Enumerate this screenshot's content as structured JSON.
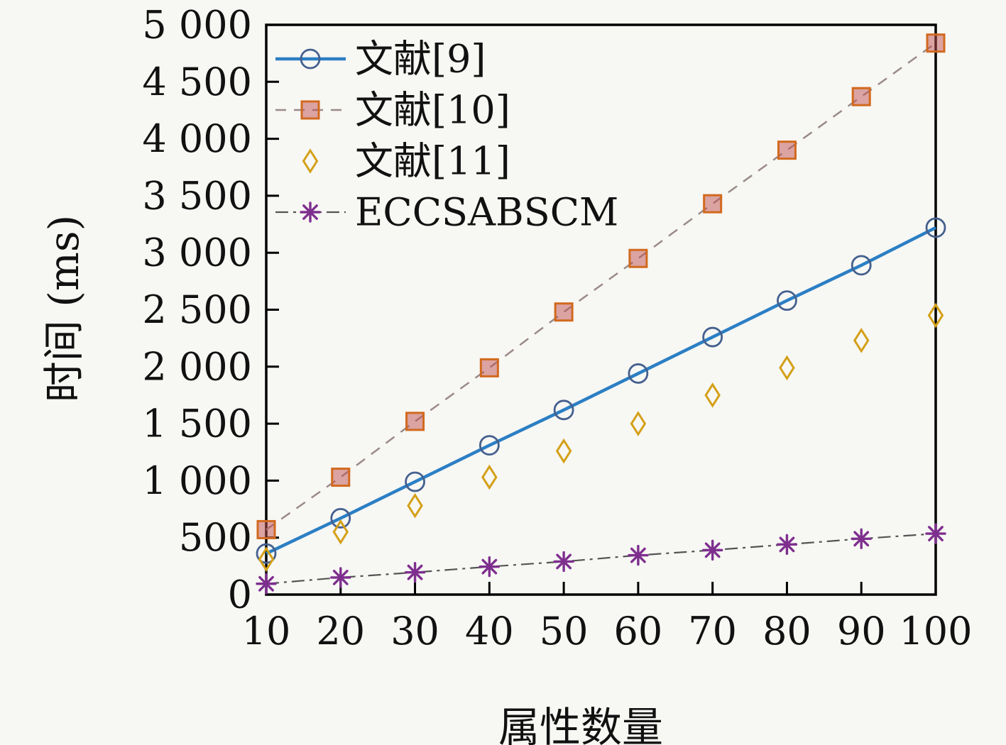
{
  "figure": {
    "background_color": "#f7f7f4",
    "text_color": "#111111",
    "x_axis_label": "属性数量",
    "y_axis_label": "时间 (ms)"
  },
  "chart_data": {
    "type": "line",
    "title": "",
    "xlabel": "属性数量",
    "ylabel": "时间 (ms)",
    "x": [
      10,
      20,
      30,
      40,
      50,
      60,
      70,
      80,
      90,
      100
    ],
    "xtick_labels": [
      "10",
      "20",
      "30",
      "40",
      "50",
      "60",
      "70",
      "80",
      "90",
      "100"
    ],
    "ytick_values": [
      0,
      500,
      1000,
      1500,
      2000,
      2500,
      3000,
      3500,
      4000,
      4500,
      5000
    ],
    "ytick_labels": [
      "0",
      "500",
      "1 000",
      "1 500",
      "2 000",
      "2 500",
      "3 000",
      "3 500",
      "4 000",
      "4 500",
      "5 000"
    ],
    "xlim": [
      10,
      100
    ],
    "ylim": [
      0,
      5000
    ],
    "grid": false,
    "legend_position": "top-left",
    "series": [
      {
        "name": "文献[9]",
        "marker": "circle",
        "marker_color": "#44608e",
        "marker_fill": "none",
        "line": "solid",
        "line_color": "#2b7fc4",
        "line_width": 4.5,
        "values": [
          360,
          670,
          990,
          1310,
          1620,
          1940,
          2260,
          2580,
          2890,
          3220
        ]
      },
      {
        "name": "文献[10]",
        "marker": "square",
        "marker_color": "#d2691e",
        "marker_fill": "#c0504d",
        "line": "dashed",
        "line_color": "#9a8a88",
        "line_width": 2.5,
        "values": [
          570,
          1030,
          1520,
          1990,
          2480,
          2950,
          3430,
          3900,
          4370,
          4840
        ]
      },
      {
        "name": "文献[11]",
        "marker": "diamond",
        "marker_color": "#d4a017",
        "marker_fill": "none",
        "line": "none",
        "line_color": "none",
        "line_width": 0,
        "values": [
          310,
          550,
          780,
          1030,
          1260,
          1500,
          1750,
          1990,
          2230,
          2450
        ]
      },
      {
        "name": "ECCSABSCM",
        "marker": "asterisk",
        "marker_color": "#7E2F8E",
        "marker_fill": "none",
        "line": "dashdot",
        "line_color": "#555555",
        "line_width": 2.2,
        "values": [
          95,
          150,
          195,
          245,
          290,
          345,
          390,
          440,
          490,
          535
        ]
      }
    ]
  }
}
